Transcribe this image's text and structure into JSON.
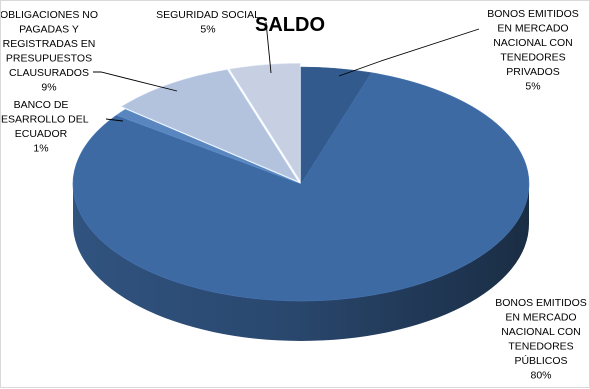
{
  "chart_data": {
    "type": "pie",
    "style": "3d-exploded",
    "title": "SALDO",
    "legend": "none",
    "slices": [
      {
        "label": [
          "BONOS EMITIDOS",
          "EN MERCADO",
          "NACIONAL CON",
          "TENEDORES",
          "PRIVADOS"
        ],
        "value": 5,
        "value_label": "5%",
        "color": "#335a8c"
      },
      {
        "label": [
          "BONOS EMITIDOS",
          "EN MERCADO",
          "NACIONAL CON",
          "TENEDORES",
          "PÚBLICOS"
        ],
        "value": 80,
        "value_label": "80%",
        "color": "#3e6aa3"
      },
      {
        "label": [
          "BANCO DE",
          "DESARROLLO DEL",
          "ECUADOR"
        ],
        "value": 1,
        "value_label": "1%",
        "color": "#5a86c0"
      },
      {
        "label": [
          "OBLIGACIONES NO",
          "PAGADAS Y",
          "REGISTRADAS EN",
          "PRESUPUESTOS",
          "CLAUSURADOS"
        ],
        "value": 9,
        "value_label": "9%",
        "color": "#b3c3de"
      },
      {
        "label": [
          "SEGURIDAD SOCIAL"
        ],
        "value": 5,
        "value_label": "5%",
        "color": "#c6d0e2"
      }
    ]
  }
}
